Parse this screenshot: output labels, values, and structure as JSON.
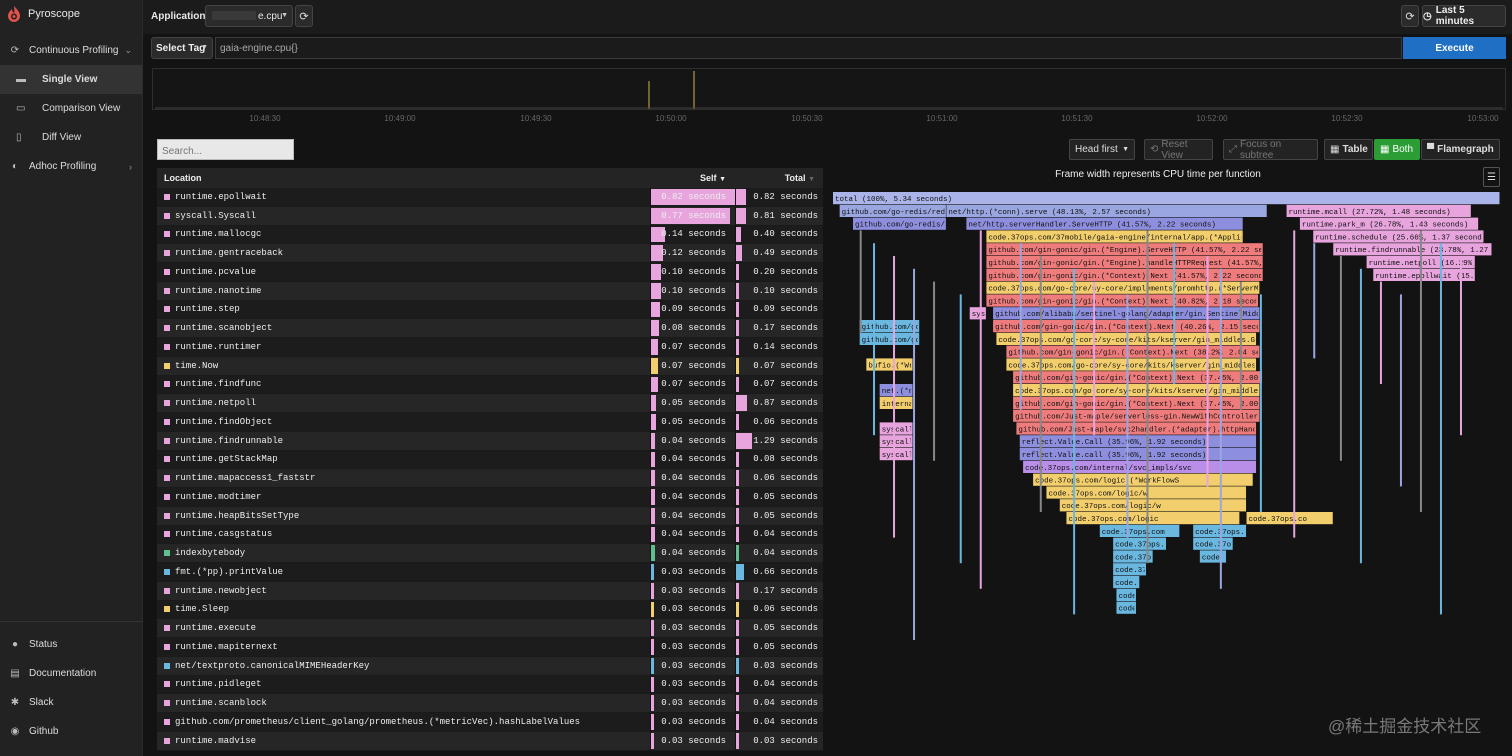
{
  "app": {
    "brand": "Pyroscope"
  },
  "sidebar": {
    "continuous": "Continuous Profiling",
    "items": [
      {
        "label": "Single View",
        "active": true
      },
      {
        "label": "Comparison View",
        "active": false
      },
      {
        "label": "Diff View",
        "active": false
      }
    ],
    "adhoc": "Adhoc Profiling",
    "bottom": [
      "Status",
      "Documentation",
      "Slack",
      "Github"
    ]
  },
  "toolbar": {
    "app_label": "Application:",
    "app_value": "e.cpu",
    "time_range": "Last 5 minutes",
    "tag_select": "Select Tag",
    "query": "gaia-engine.cpu{}",
    "execute": "Execute"
  },
  "timeline": {
    "ticks": [
      "10:48:30",
      "10:49:00",
      "10:49:30",
      "10:50:00",
      "10:50:30",
      "10:51:00",
      "10:51:30",
      "10:52:00",
      "10:52:30",
      "10:53:00"
    ]
  },
  "view": {
    "search_placeholder": "Search...",
    "head_first": "Head first",
    "reset": "Reset View",
    "focus": "Focus on subtree",
    "table": "Table",
    "both": "Both",
    "flamegraph": "Flamegraph"
  },
  "table": {
    "col_location": "Location",
    "col_self": "Self",
    "col_total": "Total",
    "rows": [
      {
        "name": "runtime.epollwait",
        "color": "#e7a4dd",
        "self": "0.82 seconds",
        "total": "0.82 seconds",
        "sv": 0.82,
        "tv": 0.82
      },
      {
        "name": "syscall.Syscall",
        "color": "#e7a4dd",
        "self": "0.77 seconds",
        "total": "0.81 seconds",
        "sv": 0.77,
        "tv": 0.81
      },
      {
        "name": "runtime.mallocgc",
        "color": "#e7a4dd",
        "self": "0.14 seconds",
        "total": "0.40 seconds",
        "sv": 0.14,
        "tv": 0.4
      },
      {
        "name": "runtime.gentraceback",
        "color": "#e7a4dd",
        "self": "0.12 seconds",
        "total": "0.49 seconds",
        "sv": 0.12,
        "tv": 0.49
      },
      {
        "name": "runtime.pcvalue",
        "color": "#e7a4dd",
        "self": "0.10 seconds",
        "total": "0.20 seconds",
        "sv": 0.1,
        "tv": 0.2
      },
      {
        "name": "runtime.nanotime",
        "color": "#e7a4dd",
        "self": "0.10 seconds",
        "total": "0.10 seconds",
        "sv": 0.1,
        "tv": 0.1
      },
      {
        "name": "runtime.step",
        "color": "#e7a4dd",
        "self": "0.09 seconds",
        "total": "0.09 seconds",
        "sv": 0.09,
        "tv": 0.09
      },
      {
        "name": "runtime.scanobject",
        "color": "#e7a4dd",
        "self": "0.08 seconds",
        "total": "0.17 seconds",
        "sv": 0.08,
        "tv": 0.17
      },
      {
        "name": "runtime.runtimer",
        "color": "#e7a4dd",
        "self": "0.07 seconds",
        "total": "0.14 seconds",
        "sv": 0.07,
        "tv": 0.14
      },
      {
        "name": "time.Now",
        "color": "#f2cf6c",
        "self": "0.07 seconds",
        "total": "0.07 seconds",
        "sv": 0.07,
        "tv": 0.07
      },
      {
        "name": "runtime.findfunc",
        "color": "#e7a4dd",
        "self": "0.07 seconds",
        "total": "0.07 seconds",
        "sv": 0.07,
        "tv": 0.07
      },
      {
        "name": "runtime.netpoll",
        "color": "#e7a4dd",
        "self": "0.05 seconds",
        "total": "0.87 seconds",
        "sv": 0.05,
        "tv": 0.87
      },
      {
        "name": "runtime.findObject",
        "color": "#e7a4dd",
        "self": "0.05 seconds",
        "total": "0.06 seconds",
        "sv": 0.05,
        "tv": 0.06
      },
      {
        "name": "runtime.findrunnable",
        "color": "#e7a4dd",
        "self": "0.04 seconds",
        "total": "1.29 seconds",
        "sv": 0.04,
        "tv": 1.29
      },
      {
        "name": "runtime.getStackMap",
        "color": "#e7a4dd",
        "self": "0.04 seconds",
        "total": "0.08 seconds",
        "sv": 0.04,
        "tv": 0.08
      },
      {
        "name": "runtime.mapaccess1_faststr",
        "color": "#e7a4dd",
        "self": "0.04 seconds",
        "total": "0.06 seconds",
        "sv": 0.04,
        "tv": 0.06
      },
      {
        "name": "runtime.modtimer",
        "color": "#e7a4dd",
        "self": "0.04 seconds",
        "total": "0.05 seconds",
        "sv": 0.04,
        "tv": 0.05
      },
      {
        "name": "runtime.heapBitsSetType",
        "color": "#e7a4dd",
        "self": "0.04 seconds",
        "total": "0.05 seconds",
        "sv": 0.04,
        "tv": 0.05
      },
      {
        "name": "runtime.casgstatus",
        "color": "#e7a4dd",
        "self": "0.04 seconds",
        "total": "0.04 seconds",
        "sv": 0.04,
        "tv": 0.04
      },
      {
        "name": "indexbytebody",
        "color": "#5fbf8f",
        "self": "0.04 seconds",
        "total": "0.04 seconds",
        "sv": 0.04,
        "tv": 0.04
      },
      {
        "name": "fmt.(*pp).printValue",
        "color": "#6ab7e0",
        "self": "0.03 seconds",
        "total": "0.66 seconds",
        "sv": 0.03,
        "tv": 0.66
      },
      {
        "name": "runtime.newobject",
        "color": "#e7a4dd",
        "self": "0.03 seconds",
        "total": "0.17 seconds",
        "sv": 0.03,
        "tv": 0.17
      },
      {
        "name": "time.Sleep",
        "color": "#f2cf6c",
        "self": "0.03 seconds",
        "total": "0.06 seconds",
        "sv": 0.03,
        "tv": 0.06
      },
      {
        "name": "runtime.execute",
        "color": "#e7a4dd",
        "self": "0.03 seconds",
        "total": "0.05 seconds",
        "sv": 0.03,
        "tv": 0.05
      },
      {
        "name": "runtime.mapiternext",
        "color": "#e7a4dd",
        "self": "0.03 seconds",
        "total": "0.05 seconds",
        "sv": 0.03,
        "tv": 0.05
      },
      {
        "name": "net/textproto.canonicalMIMEHeaderKey",
        "color": "#6ab7e0",
        "self": "0.03 seconds",
        "total": "0.03 seconds",
        "sv": 0.03,
        "tv": 0.03
      },
      {
        "name": "runtime.pidleget",
        "color": "#e7a4dd",
        "self": "0.03 seconds",
        "total": "0.04 seconds",
        "sv": 0.03,
        "tv": 0.04
      },
      {
        "name": "runtime.scanblock",
        "color": "#e7a4dd",
        "self": "0.03 seconds",
        "total": "0.04 seconds",
        "sv": 0.03,
        "tv": 0.04
      },
      {
        "name": "github.com/prometheus/client_golang/prometheus.(*metricVec).hashLabelValues",
        "color": "#e7a4dd",
        "self": "0.03 seconds",
        "total": "0.04 seconds",
        "sv": 0.03,
        "tv": 0.04
      },
      {
        "name": "runtime.madvise",
        "color": "#e7a4dd",
        "self": "0.03 seconds",
        "total": "0.03 seconds",
        "sv": 0.03,
        "tv": 0.03
      }
    ]
  },
  "flamegraph": {
    "title": "Frame width represents CPU time per function",
    "frames": [
      {
        "label": "total (100%, 5.34 seconds)",
        "depth": 0,
        "start": 0,
        "width": 1,
        "color": "#aab4e8"
      },
      {
        "label": "github.com/go-redis/redis",
        "depth": 1,
        "start": 0.01,
        "width": 0.16,
        "color": "#9aa6e0"
      },
      {
        "label": "net/http.(*conn).serve (48.13%, 2.57 seconds)",
        "depth": 1,
        "start": 0.17,
        "width": 0.481,
        "color": "#9aa6e0"
      },
      {
        "label": "runtime.mcall (27.72%, 1.48 seconds)",
        "depth": 1,
        "start": 0.68,
        "width": 0.277,
        "color": "#e7a4dd"
      },
      {
        "label": "github.com/go-redis/redis",
        "depth": 2,
        "start": 0.03,
        "width": 0.14,
        "color": "#8e8ede"
      },
      {
        "label": "net/http.serverHandler.ServeHTTP (41.57%, 2.22 seconds)",
        "depth": 2,
        "start": 0.2,
        "width": 0.415,
        "color": "#8e8ede"
      },
      {
        "label": "runtime.park_m (26.78%, 1.43 seconds)",
        "depth": 2,
        "start": 0.7,
        "width": 0.268,
        "color": "#e7a4dd"
      },
      {
        "label": "code.37ops.com/37mobile/gaia-engine/internal/app.(*Application).ServeHTTP",
        "depth": 3,
        "start": 0.23,
        "width": 0.385,
        "color": "#f2cf6c"
      },
      {
        "label": "runtime.schedule (25.66%, 1.37 seconds)",
        "depth": 3,
        "start": 0.72,
        "width": 0.256,
        "color": "#e7a4dd"
      },
      {
        "label": "github.com/gin-gonic/gin.(*Engine).ServeHTTP (41.57%, 2.22 seconds)",
        "depth": 4,
        "start": 0.23,
        "width": 0.415,
        "color": "#ef7c7c"
      },
      {
        "label": "runtime.findrunnable (23.78%, 1.27 seconds)",
        "depth": 4,
        "start": 0.75,
        "width": 0.238,
        "color": "#e7a4dd"
      },
      {
        "label": "github.com/gin-gonic/gin.(*Engine).handleHTTPRequest (41.57%, 2.22 seconds)",
        "depth": 5,
        "start": 0.23,
        "width": 0.415,
        "color": "#ef7c7c"
      },
      {
        "label": "runtime.netpoll (16.29%, 0.87 seconds)",
        "depth": 5,
        "start": 0.8,
        "width": 0.163,
        "color": "#e7a4dd"
      },
      {
        "label": "github.com/gin-gonic/gin.(*Context).Next (41.57%, 2.22 seconds)",
        "depth": 6,
        "start": 0.23,
        "width": 0.415,
        "color": "#ef7c7c"
      },
      {
        "label": "runtime.epollwait (15.36%, 0.82 seconds)",
        "depth": 6,
        "start": 0.81,
        "width": 0.153,
        "color": "#e7a4dd"
      },
      {
        "label": "code.37ops.com/go-core/sy-core/implements/promhttp.(*ServerMetrics)",
        "depth": 7,
        "start": 0.23,
        "width": 0.41,
        "color": "#f2cf6c"
      },
      {
        "label": "github.com/gin-gonic/gin.(*Context).Next (40.82%, 2.18 seconds)",
        "depth": 8,
        "start": 0.23,
        "width": 0.408,
        "color": "#ef7c7c"
      },
      {
        "label": "github.com/alibaba/sentinel-golang/adapter/gin.SentinelMiddleware",
        "depth": 9,
        "start": 0.24,
        "width": 0.4,
        "color": "#8e8ede"
      },
      {
        "label": "github.com/gin-gonic/gin.(*Context).Next (40.26%, 2.15 seconds)",
        "depth": 10,
        "start": 0.24,
        "width": 0.4,
        "color": "#ef7c7c"
      },
      {
        "label": "code.37ops.com/go-core/sy-core/kits/kserver/gin_middles.GinLogger",
        "depth": 11,
        "start": 0.245,
        "width": 0.39,
        "color": "#f2cf6c"
      },
      {
        "label": "github.com/gin-gonic/gin.(*Context).Next (38.2%, 2.04 seconds)",
        "depth": 12,
        "start": 0.26,
        "width": 0.38,
        "color": "#ef7c7c"
      },
      {
        "label": "code.37ops.com/go-core/sy-core/kits/kserver/gin_middles.Extract",
        "depth": 13,
        "start": 0.26,
        "width": 0.375,
        "color": "#f2cf6c"
      },
      {
        "label": "github.com/gin-gonic/gin.(*Context).Next (37.45%, 2.00 seconds)",
        "depth": 14,
        "start": 0.27,
        "width": 0.374,
        "color": "#ef7c7c"
      },
      {
        "label": "code.37ops.com/go-core/sy-core/kits/kserver/gin_middles.Recove",
        "depth": 15,
        "start": 0.27,
        "width": 0.37,
        "color": "#f2cf6c"
      },
      {
        "label": "github.com/gin-gonic/gin.(*Context).Next (37.45%, 2.00 seconds)",
        "depth": 16,
        "start": 0.27,
        "width": 0.37,
        "color": "#ef7c7c"
      },
      {
        "label": "github.com/Just-maple/serverless-gin.NewWithController.func1.1",
        "depth": 17,
        "start": 0.27,
        "width": 0.37,
        "color": "#ef7c7c"
      },
      {
        "label": "github.com/Just-maple/svc2handler.(*adapter).httpHandler (36.",
        "depth": 18,
        "start": 0.275,
        "width": 0.36,
        "color": "#ef7c7c"
      },
      {
        "label": "reflect.Value.Call (35.96%, 1.92 seconds)",
        "depth": 19,
        "start": 0.28,
        "width": 0.355,
        "color": "#8e8ede"
      },
      {
        "label": "reflect.Value.call (35.96%, 1.92 seconds)",
        "depth": 20,
        "start": 0.28,
        "width": 0.355,
        "color": "#8e8ede"
      },
      {
        "label": "code.37ops.com/internal/svc_impls/svc",
        "depth": 21,
        "start": 0.285,
        "width": 0.35,
        "color": "#b88ee8"
      },
      {
        "label": "code.37ops.com/logic.(*WorkFlowS",
        "depth": 22,
        "start": 0.3,
        "width": 0.33,
        "color": "#f2cf6c"
      },
      {
        "label": "code.37ops.com/logic/w",
        "depth": 23,
        "start": 0.32,
        "width": 0.3,
        "color": "#f2cf6c"
      },
      {
        "label": "code.37ops.com/logic/w",
        "depth": 24,
        "start": 0.34,
        "width": 0.28,
        "color": "#f2cf6c"
      },
      {
        "label": "code.37ops.com/logic",
        "depth": 25,
        "start": 0.35,
        "width": 0.26,
        "color": "#f2cf6c"
      },
      {
        "label": "code.37ops.com",
        "depth": 26,
        "start": 0.4,
        "width": 0.12,
        "color": "#6ab7e0"
      },
      {
        "label": "code.37ops.com",
        "depth": 27,
        "start": 0.42,
        "width": 0.08,
        "color": "#6ab7e0"
      },
      {
        "label": "code.37op",
        "depth": 28,
        "start": 0.42,
        "width": 0.06,
        "color": "#6ab7e0"
      },
      {
        "label": "code.37op",
        "depth": 29,
        "start": 0.42,
        "width": 0.05,
        "color": "#6ab7e0"
      },
      {
        "label": "code.37",
        "depth": 30,
        "start": 0.42,
        "width": 0.04,
        "color": "#6ab7e0"
      },
      {
        "label": "code.3",
        "depth": 31,
        "start": 0.425,
        "width": 0.03,
        "color": "#6ab7e0"
      },
      {
        "label": "code.37",
        "depth": 32,
        "start": 0.425,
        "width": 0.03,
        "color": "#6ab7e0"
      },
      {
        "label": "code.37ops.co",
        "depth": 25,
        "start": 0.62,
        "width": 0.13,
        "color": "#f2cf6c"
      },
      {
        "label": "code.37ops.co",
        "depth": 26,
        "start": 0.54,
        "width": 0.08,
        "color": "#6ab7e0"
      },
      {
        "label": "code.37op",
        "depth": 27,
        "start": 0.54,
        "width": 0.06,
        "color": "#6ab7e0"
      },
      {
        "label": "code",
        "depth": 28,
        "start": 0.55,
        "width": 0.04,
        "color": "#6ab7e0"
      },
      {
        "label": "sysc",
        "depth": 9,
        "start": 0.205,
        "width": 0.025,
        "color": "#e7a4dd"
      },
      {
        "label": "github.com/go-redis",
        "depth": 10,
        "start": 0.04,
        "width": 0.09,
        "color": "#6ab7e0"
      },
      {
        "label": "github.com/go-redis",
        "depth": 11,
        "start": 0.04,
        "width": 0.09,
        "color": "#6ab7e0"
      },
      {
        "label": "bufio.(*Wr",
        "depth": 13,
        "start": 0.05,
        "width": 0.07,
        "color": "#f2cf6c"
      },
      {
        "label": "net.(*netF",
        "depth": 15,
        "start": 0.07,
        "width": 0.05,
        "color": "#8e8ede"
      },
      {
        "label": "internal/poll",
        "depth": 16,
        "start": 0.07,
        "width": 0.05,
        "color": "#f2cf6c"
      },
      {
        "label": "syscall.Write",
        "depth": 18,
        "start": 0.07,
        "width": 0.05,
        "color": "#e7a4dd"
      },
      {
        "label": "syscall.Syscall",
        "depth": 19,
        "start": 0.07,
        "width": 0.05,
        "color": "#e7a4dd"
      },
      {
        "label": "syscall.Syscall",
        "depth": 20,
        "start": 0.07,
        "width": 0.05,
        "color": "#e7a4dd"
      }
    ]
  },
  "watermark": "@稀土掘金技术社区"
}
